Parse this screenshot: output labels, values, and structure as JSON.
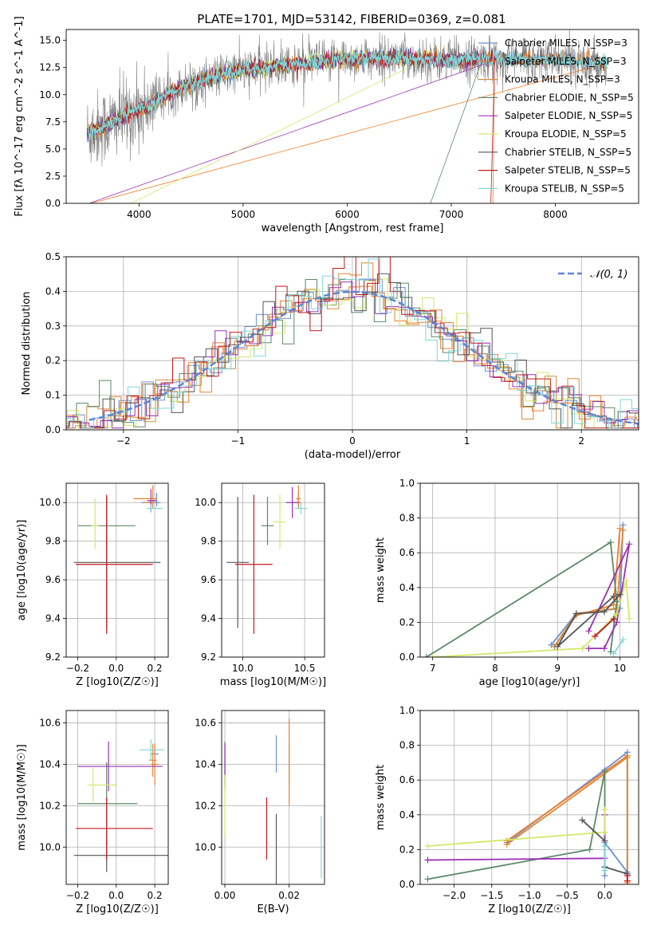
{
  "figure_title": "PLATE=1701, MJD=53142, FIBERID=0369, z=0.081",
  "legend_models": [
    "Chabrier MILES, N_SSP=3",
    "Salpeter MILES, N_SSP=3",
    "Kroupa MILES, N_SSP=3",
    "Chabrier ELODIE, N_SSP=5",
    "Salpeter ELODIE, N_SSP=5",
    "Kroupa ELODIE, N_SSP=5",
    "Chabrier STELIB, N_SSP=5",
    "Salpeter STELIB, N_SSP=5",
    "Kroupa STELIB, N_SSP=5"
  ],
  "colors": [
    "#6a8fd6",
    "#f07f2a",
    "#d9883a",
    "#5b8a68",
    "#9b2fb5",
    "#d3e86a",
    "#555555",
    "#c2191f",
    "#7fd6d9"
  ],
  "chart_data": [
    {
      "id": "spectrum",
      "type": "line",
      "xlabel": "wavelength [Angstrom, rest frame]",
      "ylabel": "Flux [fλ 10^-17 erg cm^-2 s^-1 A^-1]",
      "xlim": [
        3300,
        8800
      ],
      "ylim": [
        0,
        16
      ],
      "xticks": [
        4000,
        5000,
        6000,
        7000,
        8000
      ],
      "yticks": [
        0.0,
        2.5,
        5.0,
        7.5,
        10.0,
        12.5,
        15.0
      ],
      "data_series": {
        "name": "data",
        "color": "#808080"
      },
      "continuum_anchors": [
        [
          3500,
          6.5
        ],
        [
          3700,
          7.2
        ],
        [
          3900,
          8.2
        ],
        [
          4100,
          9.0
        ],
        [
          4300,
          10.2
        ],
        [
          4500,
          11.0
        ],
        [
          4700,
          11.6
        ],
        [
          5000,
          12.3
        ],
        [
          5500,
          12.8
        ],
        [
          6000,
          13.3
        ],
        [
          6500,
          13.4
        ],
        [
          7000,
          13.2
        ],
        [
          7500,
          13.3
        ],
        [
          8000,
          13.2
        ],
        [
          8500,
          12.9
        ]
      ],
      "grid": false,
      "legend_position": "upper right"
    },
    {
      "id": "residuals",
      "type": "line",
      "xlabel": "(data-model)/error",
      "ylabel": "Normed distribution",
      "xlim": [
        -2.5,
        2.5
      ],
      "ylim": [
        0,
        0.5
      ],
      "xticks": [
        -2,
        -1,
        0,
        1,
        2
      ],
      "yticks": [
        0.0,
        0.1,
        0.2,
        0.3,
        0.4,
        0.5
      ],
      "reference": {
        "label": "𝒩(0, 1)",
        "mean": 0,
        "sigma": 1,
        "color": "#5a85d6"
      },
      "hist_bin_width": 0.1,
      "grid": true,
      "legend_position": "upper right"
    },
    {
      "id": "age-vs-Z",
      "type": "scatter",
      "xlabel": "Z [log10(Z/Z☉)]",
      "ylabel": "age  [log10(age/yr)]",
      "xlim": [
        -0.26,
        0.27
      ],
      "ylim": [
        9.2,
        10.1
      ],
      "xticks": [
        -0.2,
        0.0,
        0.2
      ],
      "yticks": [
        9.2,
        9.4,
        9.6,
        9.8,
        10.0
      ],
      "points": [
        {
          "model": 0,
          "x": 0.21,
          "y": 10.0,
          "xerr": [
            0.08,
            0.02
          ],
          "yerr": [
            0.02,
            0.05
          ]
        },
        {
          "model": 1,
          "x": 0.19,
          "y": 10.02,
          "xerr": [
            0.1,
            0.02
          ],
          "yerr": [
            0.04,
            0.07
          ]
        },
        {
          "model": 2,
          "x": 0.19,
          "y": 10.0,
          "xerr": [
            0.05,
            0.01
          ],
          "yerr": [
            0.03,
            0.05
          ]
        },
        {
          "model": 3,
          "x": -0.05,
          "y": 9.88,
          "xerr": [
            0.15,
            0.15
          ],
          "yerr": [
            0.1,
            0.15
          ]
        },
        {
          "model": 4,
          "x": 0.18,
          "y": 10.01,
          "xerr": [
            0.02,
            0.03
          ],
          "yerr": [
            0.06,
            0.06
          ]
        },
        {
          "model": 5,
          "x": -0.11,
          "y": 9.88,
          "xerr": [
            0.02,
            0.02
          ],
          "yerr": [
            0.12,
            0.14
          ]
        },
        {
          "model": 6,
          "x": -0.05,
          "y": 9.69,
          "xerr": [
            0.17,
            0.28
          ],
          "yerr": [
            0.34,
            0.34
          ]
        },
        {
          "model": 7,
          "x": -0.05,
          "y": 9.68,
          "xerr": [
            0.16,
            0.24
          ],
          "yerr": [
            0.36,
            0.36
          ]
        },
        {
          "model": 8,
          "x": 0.18,
          "y": 9.97,
          "xerr": [
            0.02,
            0.06
          ],
          "yerr": [
            0.02,
            0.02
          ]
        }
      ]
    },
    {
      "id": "age-vs-mass",
      "type": "scatter",
      "xlabel": "mass [log10(M/M☉)]",
      "ylabel": "",
      "xlim": [
        9.83,
        10.66
      ],
      "ylim": [
        9.2,
        10.1
      ],
      "xticks": [
        10.0,
        10.5
      ],
      "yticks": [
        9.2,
        9.4,
        9.6,
        9.8,
        10.0
      ],
      "points": [
        {
          "model": 0,
          "x": 10.45,
          "y": 10.0,
          "xerr": [
            0.02,
            0.02
          ],
          "yerr": [
            0.02,
            0.05
          ]
        },
        {
          "model": 1,
          "x": 10.45,
          "y": 10.02,
          "xerr": [
            0.02,
            0.02
          ],
          "yerr": [
            0.04,
            0.07
          ]
        },
        {
          "model": 2,
          "x": 10.45,
          "y": 10.0,
          "xerr": [
            0.03,
            0.02
          ],
          "yerr": [
            0.03,
            0.05
          ]
        },
        {
          "model": 3,
          "x": 10.2,
          "y": 9.88,
          "xerr": [
            0.05,
            0.05
          ],
          "yerr": [
            0.1,
            0.15
          ]
        },
        {
          "model": 4,
          "x": 10.4,
          "y": 10.0,
          "xerr": [
            0.05,
            0.05
          ],
          "yerr": [
            0.08,
            0.08
          ]
        },
        {
          "model": 5,
          "x": 10.3,
          "y": 9.9,
          "xerr": [
            0.05,
            0.05
          ],
          "yerr": [
            0.14,
            0.14
          ]
        },
        {
          "model": 6,
          "x": 9.96,
          "y": 9.69,
          "xerr": [
            0.09,
            0.09
          ],
          "yerr": [
            0.34,
            0.34
          ]
        },
        {
          "model": 7,
          "x": 10.09,
          "y": 9.68,
          "xerr": [
            0.15,
            0.15
          ],
          "yerr": [
            0.36,
            0.36
          ]
        },
        {
          "model": 8,
          "x": 10.47,
          "y": 9.97,
          "xerr": [
            0.05,
            0.05
          ],
          "yerr": [
            0.03,
            0.03
          ]
        }
      ]
    },
    {
      "id": "massweight-vs-age",
      "type": "line",
      "xlabel": "age  [log10(age/yr)]",
      "ylabel": "mass weight",
      "xlim": [
        6.8,
        10.3
      ],
      "ylim": [
        0,
        1.0
      ],
      "xticks": [
        7,
        8,
        9,
        10
      ],
      "yticks": [
        0.0,
        0.2,
        0.4,
        0.6,
        0.8,
        1.0
      ],
      "grid": true,
      "series": [
        {
          "model": 0,
          "x": [
            10.05,
            10.0,
            9.3,
            8.9
          ],
          "y": [
            0.76,
            0.28,
            0.25,
            0.07
          ]
        },
        {
          "model": 1,
          "x": [
            10.0,
            9.9,
            9.3,
            8.95
          ],
          "y": [
            0.74,
            0.3,
            0.24,
            0.06
          ]
        },
        {
          "model": 2,
          "x": [
            10.05,
            9.95,
            9.3,
            8.95
          ],
          "y": [
            0.73,
            0.28,
            0.25,
            0.06
          ]
        },
        {
          "model": 3,
          "x": [
            6.9,
            9.85,
            9.95,
            9.85
          ],
          "y": [
            0.0,
            0.66,
            0.32,
            0.03
          ]
        },
        {
          "model": 4,
          "x": [
            9.5,
            10.15,
            9.95,
            9.75,
            9.5
          ],
          "y": [
            0.15,
            0.65,
            0.2,
            0.05,
            0.05
          ]
        },
        {
          "model": 5,
          "x": [
            7.0,
            9.4,
            9.95,
            10.1,
            10.15
          ],
          "y": [
            0.0,
            0.05,
            0.25,
            0.44,
            0.22
          ]
        },
        {
          "model": 6,
          "x": [
            9.9,
            9.0,
            9.3,
            9.75,
            10.0
          ],
          "y": [
            0.35,
            0.06,
            0.25,
            0.26,
            0.36
          ]
        },
        {
          "model": 7,
          "x": [
            9.6,
            9.9
          ],
          "y": [
            0.12,
            0.22
          ]
        },
        {
          "model": 8,
          "x": [
            9.9,
            10.05
          ],
          "y": [
            0.02,
            0.1
          ]
        }
      ]
    },
    {
      "id": "mass-vs-Z",
      "type": "scatter",
      "xlabel": "Z [log10(Z/Z☉)]",
      "ylabel": "mass [log10(M/M☉)]",
      "xlim": [
        -0.26,
        0.27
      ],
      "ylim": [
        9.82,
        10.66
      ],
      "xticks": [
        -0.2,
        0.0,
        0.2
      ],
      "yticks": [
        10.0,
        10.2,
        10.4,
        10.6
      ],
      "points": [
        {
          "model": 0,
          "x": 0.2,
          "y": 10.45,
          "xerr": [
            0.02,
            0.02
          ],
          "yerr": [
            0.04,
            0.04
          ]
        },
        {
          "model": 1,
          "x": 0.2,
          "y": 10.4,
          "xerr": [
            0.02,
            0.02
          ],
          "yerr": [
            0.1,
            0.1
          ]
        },
        {
          "model": 2,
          "x": 0.19,
          "y": 10.42,
          "xerr": [
            0.02,
            0.02
          ],
          "yerr": [
            0.08,
            0.08
          ]
        },
        {
          "model": 3,
          "x": -0.05,
          "y": 10.21,
          "xerr": [
            0.15,
            0.16
          ],
          "yerr": [
            0.2,
            0.2
          ]
        },
        {
          "model": 4,
          "x": -0.04,
          "y": 10.39,
          "xerr": [
            0.16,
            0.28
          ],
          "yerr": [
            0.12,
            0.12
          ]
        },
        {
          "model": 5,
          "x": -0.12,
          "y": 10.3,
          "xerr": [
            0.03,
            0.12
          ],
          "yerr": [
            0.08,
            0.08
          ]
        },
        {
          "model": 6,
          "x": -0.05,
          "y": 9.96,
          "xerr": [
            0.17,
            0.32
          ],
          "yerr": [
            0.08,
            0.08
          ]
        },
        {
          "model": 7,
          "x": -0.05,
          "y": 10.09,
          "xerr": [
            0.16,
            0.24
          ],
          "yerr": [
            0.15,
            0.15
          ]
        },
        {
          "model": 8,
          "x": 0.18,
          "y": 10.47,
          "xerr": [
            0.06,
            0.07
          ],
          "yerr": [
            0.05,
            0.05
          ]
        }
      ]
    },
    {
      "id": "mass-vs-EBV",
      "type": "scatter",
      "xlabel": "E(B-V)",
      "ylabel": "",
      "xlim": [
        -0.001,
        0.031
      ],
      "ylim": [
        9.82,
        10.66
      ],
      "xticks": [
        0.0,
        0.02
      ],
      "yticks": [
        10.0,
        10.2,
        10.4,
        10.6
      ],
      "points": [
        {
          "model": 0,
          "x": 0.016,
          "y": 10.45,
          "xerr": [
            0,
            0
          ],
          "yerr": [
            0.09,
            0.09
          ]
        },
        {
          "model": 1,
          "x": 0.02,
          "y": 10.42,
          "xerr": [
            0,
            0
          ],
          "yerr": [
            0.22,
            0.2
          ]
        },
        {
          "model": 2,
          "x": 0.02,
          "y": 10.4,
          "xerr": [
            0,
            0
          ],
          "yerr": [
            0.1,
            0.1
          ]
        },
        {
          "model": 3,
          "x": 0.0,
          "y": 10.39,
          "xerr": [
            0,
            0
          ],
          "yerr": [
            0.12,
            0.12
          ]
        },
        {
          "model": 4,
          "x": 0.0,
          "y": 10.4,
          "xerr": [
            0,
            0
          ],
          "yerr": [
            0.1,
            0.1
          ]
        },
        {
          "model": 5,
          "x": 0.0,
          "y": 10.2,
          "xerr": [
            0,
            0
          ],
          "yerr": [
            0.15,
            0.15
          ]
        },
        {
          "model": 6,
          "x": 0.016,
          "y": 9.96,
          "xerr": [
            0,
            0
          ],
          "yerr": [
            0.2,
            0.2
          ]
        },
        {
          "model": 7,
          "x": 0.013,
          "y": 10.09,
          "xerr": [
            0,
            0
          ],
          "yerr": [
            0.15,
            0.15
          ]
        },
        {
          "model": 8,
          "x": 0.03,
          "y": 10.0,
          "xerr": [
            0,
            0
          ],
          "yerr": [
            0.15,
            0.15
          ]
        }
      ]
    },
    {
      "id": "massweight-vs-Z",
      "type": "line",
      "xlabel": "Z [log10(Z/Z☉)]",
      "ylabel": "mass weight",
      "xlim": [
        -2.45,
        0.45
      ],
      "ylim": [
        0,
        1.0
      ],
      "xticks": [
        -2.0,
        -1.5,
        -1.0,
        -0.5,
        0.0
      ],
      "yticks": [
        0.0,
        0.2,
        0.4,
        0.6,
        0.8,
        1.0
      ],
      "grid": true,
      "series": [
        {
          "model": 0,
          "x": [
            -1.3,
            0.0,
            0.3,
            0.3,
            0.0,
            0.0
          ],
          "y": [
            0.24,
            0.66,
            0.76,
            0.07,
            0.24,
            0.05
          ]
        },
        {
          "model": 1,
          "x": [
            -1.3,
            0.3,
            0.3
          ],
          "y": [
            0.25,
            0.74,
            0.02
          ]
        },
        {
          "model": 2,
          "x": [
            -1.3,
            0.3,
            0.3
          ],
          "y": [
            0.23,
            0.73,
            0.01
          ]
        },
        {
          "model": 3,
          "x": [
            -2.35,
            -0.2,
            0.0,
            0.0
          ],
          "y": [
            0.03,
            0.2,
            0.65,
            0.1
          ]
        },
        {
          "model": 4,
          "x": [
            -2.35,
            0.0,
            0.0
          ],
          "y": [
            0.14,
            0.15,
            0.4
          ]
        },
        {
          "model": 5,
          "x": [
            -2.35,
            0.0,
            0.0
          ],
          "y": [
            0.22,
            0.3,
            0.43
          ]
        },
        {
          "model": 6,
          "x": [
            -0.3,
            0.0,
            0.0,
            0.3
          ],
          "y": [
            0.37,
            0.25,
            0.1,
            0.06
          ]
        },
        {
          "model": 7,
          "x": [
            0.3,
            0.3
          ],
          "y": [
            0.05,
            0.02
          ]
        },
        {
          "model": 8,
          "x": [
            0.0,
            0.0
          ],
          "y": [
            0.22,
            0.08
          ]
        }
      ]
    }
  ]
}
